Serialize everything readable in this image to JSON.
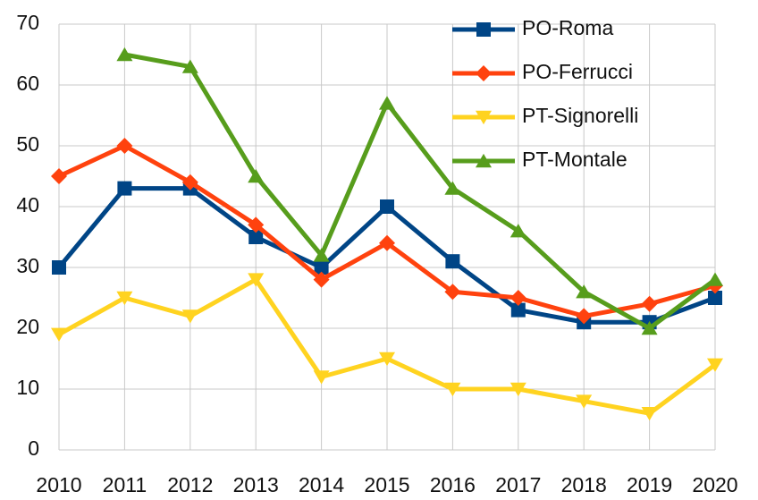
{
  "chart_data": {
    "type": "line",
    "categories": [
      "2010",
      "2011",
      "2012",
      "2013",
      "2014",
      "2015",
      "2016",
      "2017",
      "2018",
      "2019",
      "2020"
    ],
    "series": [
      {
        "name": "PO-Roma",
        "color": "#004586",
        "marker": "square",
        "values": [
          30,
          43,
          43,
          35,
          30,
          40,
          31,
          23,
          21,
          21,
          25
        ]
      },
      {
        "name": "PO-Ferrucci",
        "color": "#ff420e",
        "marker": "diamond",
        "values": [
          45,
          50,
          44,
          37,
          28,
          34,
          26,
          25,
          22,
          24,
          27
        ]
      },
      {
        "name": "PT-Signorelli",
        "color": "#ffd320",
        "marker": "triangle-down",
        "values": [
          19,
          25,
          22,
          28,
          12,
          15,
          10,
          10,
          8,
          6,
          14
        ]
      },
      {
        "name": "PT-Montale",
        "color": "#579d1c",
        "marker": "triangle-up",
        "values": [
          null,
          65,
          63,
          45,
          32,
          57,
          43,
          36,
          26,
          20,
          28
        ]
      }
    ],
    "ylim": [
      0,
      70
    ],
    "yticks": [
      0,
      10,
      20,
      30,
      40,
      50,
      60,
      70
    ],
    "grid": true,
    "legend": "upper right"
  }
}
